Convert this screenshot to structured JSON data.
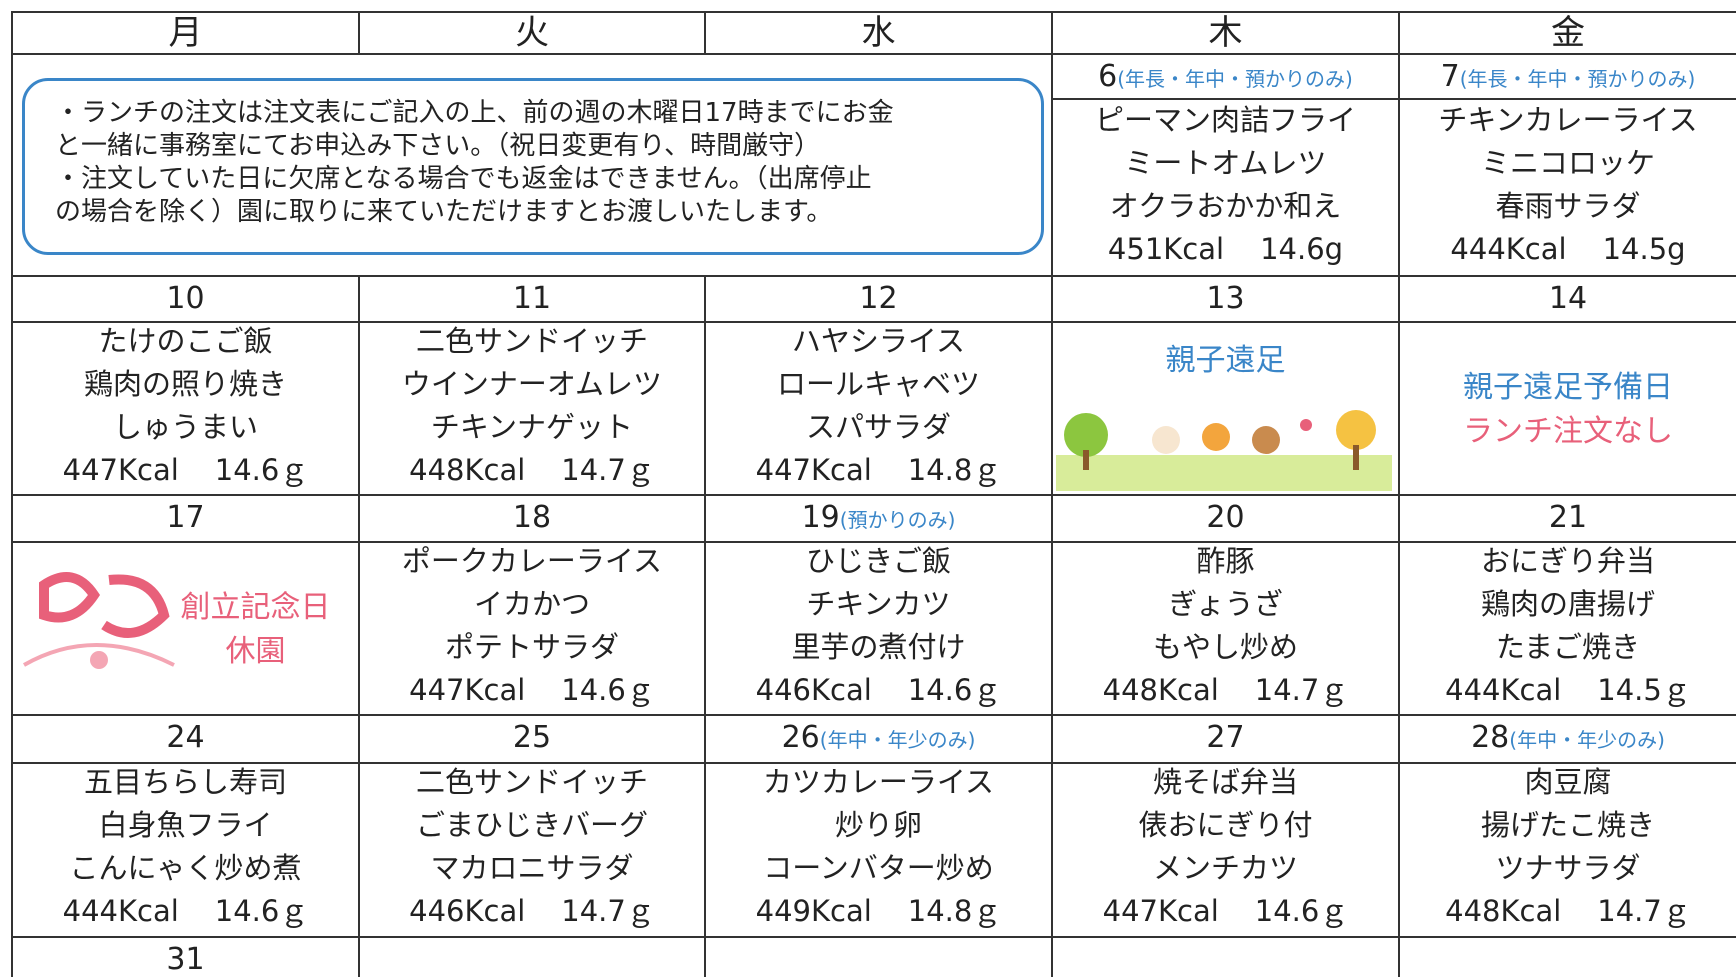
{
  "header": {
    "days": [
      "月",
      "火",
      "水",
      "木",
      "金"
    ]
  },
  "notice": [
    "・ランチの注文は注文表にご記入の上、前の週の木曜日17時までにお金",
    "と一緒に事務室にてお申込み下さい。（祝日変更有り、時間厳守）",
    "・注文していた日に欠席となる場合でも返金はできません。（出席停止",
    "の場合を除く）園に取りに来ていただけますとお渡しいたします。"
  ],
  "first_week": [
    {
      "date": "6",
      "note": "(年長・年中・預かりのみ)",
      "menu": [
        "ピーマン肉詰フライ",
        "ミートオムレツ",
        "オクラおかか和え"
      ],
      "energy": "451Kcal",
      "protein": "14.6g"
    },
    {
      "date": "7",
      "note": "(年長・年中・預かりのみ)",
      "menu": [
        "チキンカレーライス",
        "ミニコロッケ",
        "春雨サラダ"
      ],
      "energy": "444Kcal",
      "protein": "14.5g"
    }
  ],
  "weeks": [
    [
      {
        "date": "10",
        "menu": [
          "たけのこご飯",
          "鶏肉の照り焼き",
          "しゅうまい"
        ],
        "energy": "447Kcal",
        "protein": "14.6ｇ"
      },
      {
        "date": "11",
        "menu": [
          "二色サンドイッチ",
          "ウインナーオムレツ",
          "チキンナゲット"
        ],
        "energy": "448Kcal",
        "protein": "14.7ｇ"
      },
      {
        "date": "12",
        "menu": [
          "ハヤシライス",
          "ロールキャベツ",
          "スパサラダ"
        ],
        "energy": "447Kcal",
        "protein": "14.8ｇ"
      },
      {
        "date": "13",
        "event": [
          {
            "text": "親子遠足",
            "color": "#3a86c8"
          }
        ]
      },
      {
        "date": "14",
        "event": [
          {
            "text": "親子遠足予備日",
            "color": "#3a86c8"
          },
          {
            "text": "ランチ注文なし",
            "color": "#e8607a"
          }
        ]
      }
    ],
    [
      {
        "date": "17",
        "event": [
          {
            "text": "創立記念日",
            "color": "#e8607a"
          },
          {
            "text": "休園",
            "color": "#e8607a"
          }
        ]
      },
      {
        "date": "18",
        "menu": [
          "ポークカレーライス",
          "イカかつ",
          "ポテトサラダ"
        ],
        "energy": "447Kcal",
        "protein": "14.6ｇ"
      },
      {
        "date": "19",
        "note": "(預かりのみ)",
        "menu": [
          "ひじきご飯",
          "チキンカツ",
          "里芋の煮付け"
        ],
        "energy": "446Kcal",
        "protein": "14.6ｇ"
      },
      {
        "date": "20",
        "menu": [
          "酢豚",
          "ぎょうざ",
          "もやし炒め"
        ],
        "energy": "448Kcal",
        "protein": "14.7ｇ"
      },
      {
        "date": "21",
        "menu": [
          "おにぎり弁当",
          "鶏肉の唐揚げ",
          "たまご焼き"
        ],
        "energy": "444Kcal",
        "protein": "14.5ｇ"
      }
    ],
    [
      {
        "date": "24",
        "menu": [
          "五目ちらし寿司",
          "白身魚フライ",
          "こんにゃく炒め煮"
        ],
        "energy": "444Kcal",
        "protein": "14.6ｇ"
      },
      {
        "date": "25",
        "menu": [
          "二色サンドイッチ",
          "ごまひじきバーグ",
          "マカロニサラダ"
        ],
        "energy": "446Kcal",
        "protein": "14.7ｇ"
      },
      {
        "date": "26",
        "note": "(年中・年少のみ)",
        "menu": [
          "カツカレーライス",
          "炒り卵",
          "コーンバター炒め"
        ],
        "energy": "449Kcal",
        "protein": "14.8ｇ"
      },
      {
        "date": "27",
        "menu": [
          "焼そば弁当",
          "俵おにぎり付",
          "メンチカツ"
        ],
        "energy": "447Kcal",
        "protein": "14.6ｇ"
      },
      {
        "date": "28",
        "note": "(年中・年少のみ)",
        "menu": [
          "肉豆腐",
          "揚げたこ焼き",
          "ツナサラダ"
        ],
        "energy": "448Kcal",
        "protein": "14.7ｇ"
      }
    ]
  ],
  "last_week": [
    "31"
  ]
}
